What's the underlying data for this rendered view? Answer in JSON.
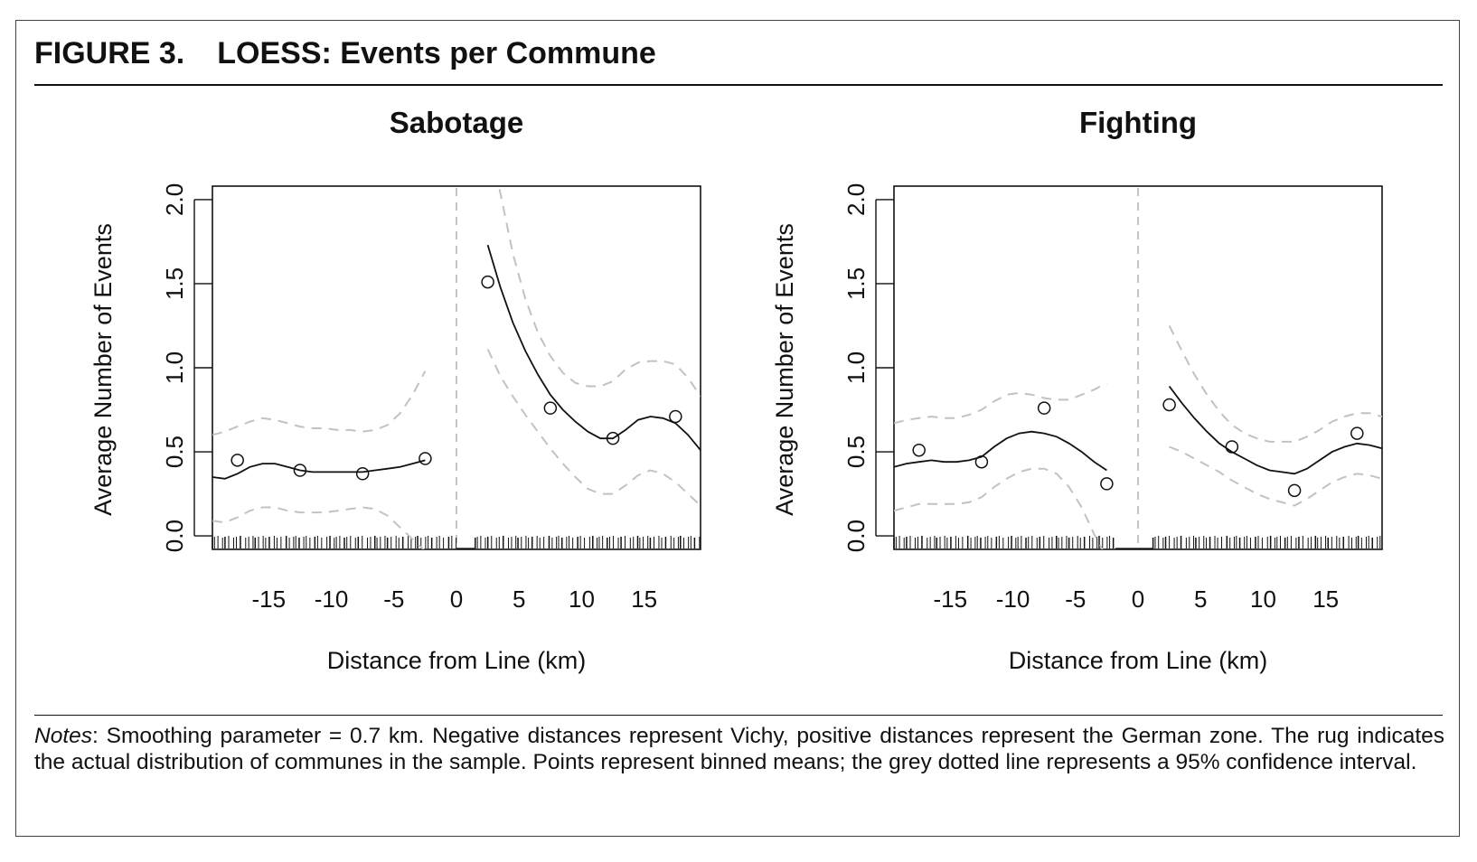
{
  "figure": {
    "label": "FIGURE 3.",
    "title": "LOESS: Events per Commune",
    "notes_label": "Notes",
    "notes_text": ": Smoothing parameter = 0.7 km. Negative distances represent Vichy, positive distances represent the German zone. The rug indicates the actual distribution of communes in the sample. Points represent binned means; the grey dotted line represents a 95% confidence interval."
  },
  "chart_data": [
    {
      "type": "scatter",
      "title": "Sabotage",
      "xlabel": "Distance from Line (km)",
      "ylabel": "Average Number of Events",
      "xlim": [
        -19.5,
        19.5
      ],
      "ylim": [
        -0.08,
        2.08
      ],
      "xticks": [
        -15,
        -10,
        -5,
        0,
        5,
        10,
        15
      ],
      "xtick_labels": [
        "-15",
        "-10",
        "-5",
        "0",
        "5",
        "10",
        "15"
      ],
      "yticks": [
        0.0,
        0.5,
        1.0,
        1.5,
        2.0
      ],
      "ytick_labels": [
        "0.0",
        "0.5",
        "1.0",
        "1.5",
        "2.0"
      ],
      "cutoff": 0,
      "points": [
        {
          "x": -17.5,
          "y": 0.45
        },
        {
          "x": -12.5,
          "y": 0.39
        },
        {
          "x": -7.5,
          "y": 0.37
        },
        {
          "x": -2.5,
          "y": 0.46
        },
        {
          "x": 2.5,
          "y": 1.51
        },
        {
          "x": 7.5,
          "y": 0.76
        },
        {
          "x": 12.5,
          "y": 0.58
        },
        {
          "x": 17.5,
          "y": 0.71
        }
      ],
      "loess_left": {
        "x": [
          -19.5,
          -18.5,
          -17.5,
          -16.5,
          -15.5,
          -14.5,
          -13.5,
          -12.5,
          -11.5,
          -10.5,
          -9.5,
          -8.5,
          -7.5,
          -6.5,
          -5.5,
          -4.5,
          -3.5,
          -2.5
        ],
        "fit": [
          0.35,
          0.34,
          0.37,
          0.41,
          0.43,
          0.43,
          0.41,
          0.39,
          0.38,
          0.38,
          0.38,
          0.38,
          0.38,
          0.39,
          0.4,
          0.41,
          0.43,
          0.45
        ],
        "upper": [
          0.6,
          0.62,
          0.65,
          0.68,
          0.7,
          0.69,
          0.67,
          0.65,
          0.64,
          0.64,
          0.63,
          0.63,
          0.62,
          0.63,
          0.66,
          0.73,
          0.84,
          0.98
        ],
        "lower": [
          0.09,
          0.08,
          0.11,
          0.15,
          0.17,
          0.17,
          0.15,
          0.14,
          0.14,
          0.14,
          0.15,
          0.16,
          0.17,
          0.16,
          0.12,
          0.05,
          -0.02,
          -0.09
        ]
      },
      "loess_right": {
        "x": [
          2.5,
          3.5,
          4.5,
          5.5,
          6.5,
          7.5,
          8.5,
          9.5,
          10.5,
          11.5,
          12.5,
          13.5,
          14.5,
          15.5,
          16.5,
          17.5,
          18.5,
          19.5
        ],
        "fit": [
          1.73,
          1.48,
          1.27,
          1.1,
          0.96,
          0.84,
          0.75,
          0.68,
          0.62,
          0.58,
          0.58,
          0.63,
          0.69,
          0.71,
          0.7,
          0.67,
          0.6,
          0.51
        ],
        "upper": [
          2.36,
          2.04,
          1.68,
          1.41,
          1.21,
          1.07,
          0.97,
          0.91,
          0.89,
          0.89,
          0.92,
          0.99,
          1.03,
          1.04,
          1.04,
          1.02,
          0.94,
          0.83
        ],
        "lower": [
          1.11,
          0.95,
          0.83,
          0.72,
          0.62,
          0.52,
          0.43,
          0.35,
          0.28,
          0.25,
          0.25,
          0.3,
          0.36,
          0.39,
          0.37,
          0.32,
          0.25,
          0.18
        ]
      },
      "rug_left": [
        -19.5,
        0
      ],
      "rug_right": [
        1.5,
        19.5
      ]
    },
    {
      "type": "scatter",
      "title": "Fighting",
      "xlabel": "Distance from Line (km)",
      "ylabel": "Average Number of Events",
      "xlim": [
        -19.5,
        19.5
      ],
      "ylim": [
        -0.08,
        2.08
      ],
      "xticks": [
        -15,
        -10,
        -5,
        0,
        5,
        10,
        15
      ],
      "xtick_labels": [
        "-15",
        "-10",
        "-5",
        "0",
        "5",
        "10",
        "15"
      ],
      "yticks": [
        0.0,
        0.5,
        1.0,
        1.5,
        2.0
      ],
      "ytick_labels": [
        "0.0",
        "0.5",
        "1.0",
        "1.5",
        "2.0"
      ],
      "cutoff": 0,
      "points": [
        {
          "x": -17.5,
          "y": 0.51
        },
        {
          "x": -12.5,
          "y": 0.44
        },
        {
          "x": -7.5,
          "y": 0.76
        },
        {
          "x": -2.5,
          "y": 0.31
        },
        {
          "x": 2.5,
          "y": 0.78
        },
        {
          "x": 7.5,
          "y": 0.53
        },
        {
          "x": 12.5,
          "y": 0.27
        },
        {
          "x": 17.5,
          "y": 0.61
        }
      ],
      "loess_left": {
        "x": [
          -19.5,
          -18.5,
          -17.5,
          -16.5,
          -15.5,
          -14.5,
          -13.5,
          -12.5,
          -11.5,
          -10.5,
          -9.5,
          -8.5,
          -7.5,
          -6.5,
          -5.5,
          -4.5,
          -3.5,
          -2.5
        ],
        "fit": [
          0.41,
          0.43,
          0.44,
          0.45,
          0.44,
          0.44,
          0.45,
          0.47,
          0.53,
          0.58,
          0.61,
          0.62,
          0.61,
          0.59,
          0.55,
          0.5,
          0.44,
          0.39
        ],
        "upper": [
          0.67,
          0.69,
          0.7,
          0.71,
          0.7,
          0.7,
          0.72,
          0.75,
          0.8,
          0.84,
          0.85,
          0.84,
          0.82,
          0.81,
          0.81,
          0.84,
          0.87,
          0.91
        ],
        "lower": [
          0.15,
          0.17,
          0.19,
          0.19,
          0.19,
          0.19,
          0.2,
          0.23,
          0.29,
          0.34,
          0.38,
          0.4,
          0.4,
          0.37,
          0.29,
          0.17,
          0.01,
          -0.13
        ]
      },
      "loess_right": {
        "x": [
          2.5,
          3.5,
          4.5,
          5.5,
          6.5,
          7.5,
          8.5,
          9.5,
          10.5,
          11.5,
          12.5,
          13.5,
          14.5,
          15.5,
          16.5,
          17.5,
          18.5,
          19.5
        ],
        "fit": [
          0.89,
          0.79,
          0.7,
          0.62,
          0.55,
          0.5,
          0.46,
          0.42,
          0.39,
          0.38,
          0.37,
          0.4,
          0.45,
          0.5,
          0.53,
          0.55,
          0.54,
          0.52
        ],
        "upper": [
          1.25,
          1.1,
          0.96,
          0.84,
          0.74,
          0.66,
          0.61,
          0.58,
          0.56,
          0.56,
          0.56,
          0.59,
          0.63,
          0.68,
          0.71,
          0.73,
          0.73,
          0.71
        ],
        "lower": [
          0.53,
          0.5,
          0.46,
          0.42,
          0.38,
          0.33,
          0.29,
          0.25,
          0.22,
          0.2,
          0.18,
          0.22,
          0.27,
          0.32,
          0.35,
          0.37,
          0.36,
          0.34
        ]
      },
      "rug_left": [
        -19.5,
        -1.8
      ],
      "rug_right": [
        1.2,
        19.5
      ]
    }
  ]
}
